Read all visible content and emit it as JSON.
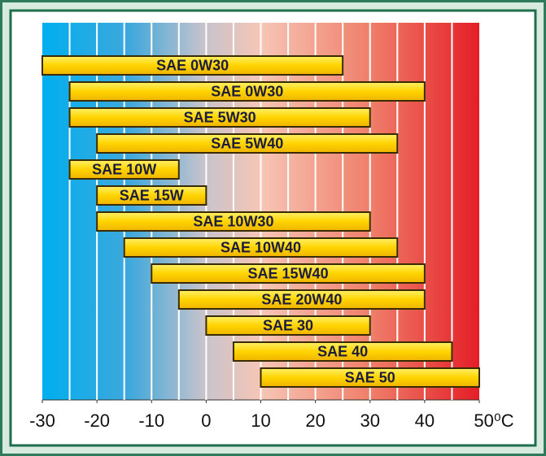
{
  "chart_data": {
    "type": "range_bar",
    "categories": [
      "SAE 0W30",
      "SAE 0W30",
      "SAE 5W30",
      "SAE 5W40",
      "SAE 10W",
      "SAE 15W",
      "SAE 10W30",
      "SAE 10W40",
      "SAE 15W40",
      "SAE 20W40",
      "SAE 30",
      "SAE 40",
      "SAE 50"
    ],
    "starts": [
      -30,
      -25,
      -25,
      -20,
      -25,
      -20,
      -20,
      -15,
      -10,
      -5,
      0,
      5,
      10
    ],
    "ends": [
      25,
      40,
      30,
      35,
      -5,
      0,
      30,
      35,
      40,
      40,
      30,
      45,
      50
    ],
    "color": "#ffd400",
    "xlim": [
      -30,
      50
    ],
    "xticks": [
      -30,
      -20,
      -10,
      0,
      10,
      20,
      30,
      40,
      {
        "value": 50,
        "label": "50⁰C"
      }
    ],
    "xminorticks": [
      -25,
      -15,
      -5,
      5,
      15,
      25,
      35,
      45
    ],
    "grid": true
  }
}
